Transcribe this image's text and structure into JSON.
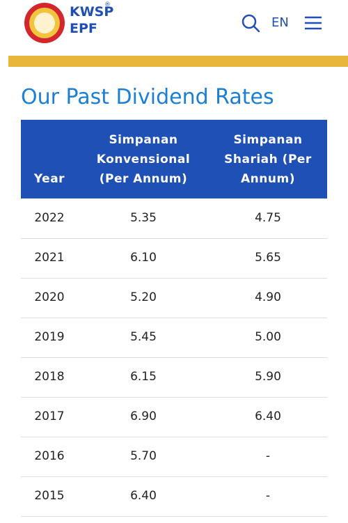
{
  "header": {
    "brand": "KWSP",
    "registered": "®",
    "brand_sub": "EPF",
    "language": "EN"
  },
  "title": "Our Past Dividend Rates",
  "table": {
    "columns": [
      "Year",
      "Simpanan Konvensional (Per Annum)",
      "Simpanan Shariah (Per Annum)"
    ],
    "rows": [
      [
        "2022",
        "5.35",
        "4.75"
      ],
      [
        "2021",
        "6.10",
        "5.65"
      ],
      [
        "2020",
        "5.20",
        "4.90"
      ],
      [
        "2019",
        "5.45",
        "5.00"
      ],
      [
        "2018",
        "6.15",
        "5.90"
      ],
      [
        "2017",
        "6.90",
        "6.40"
      ],
      [
        "2016",
        "5.70",
        "-"
      ],
      [
        "2015",
        "6.40",
        "-"
      ]
    ]
  }
}
